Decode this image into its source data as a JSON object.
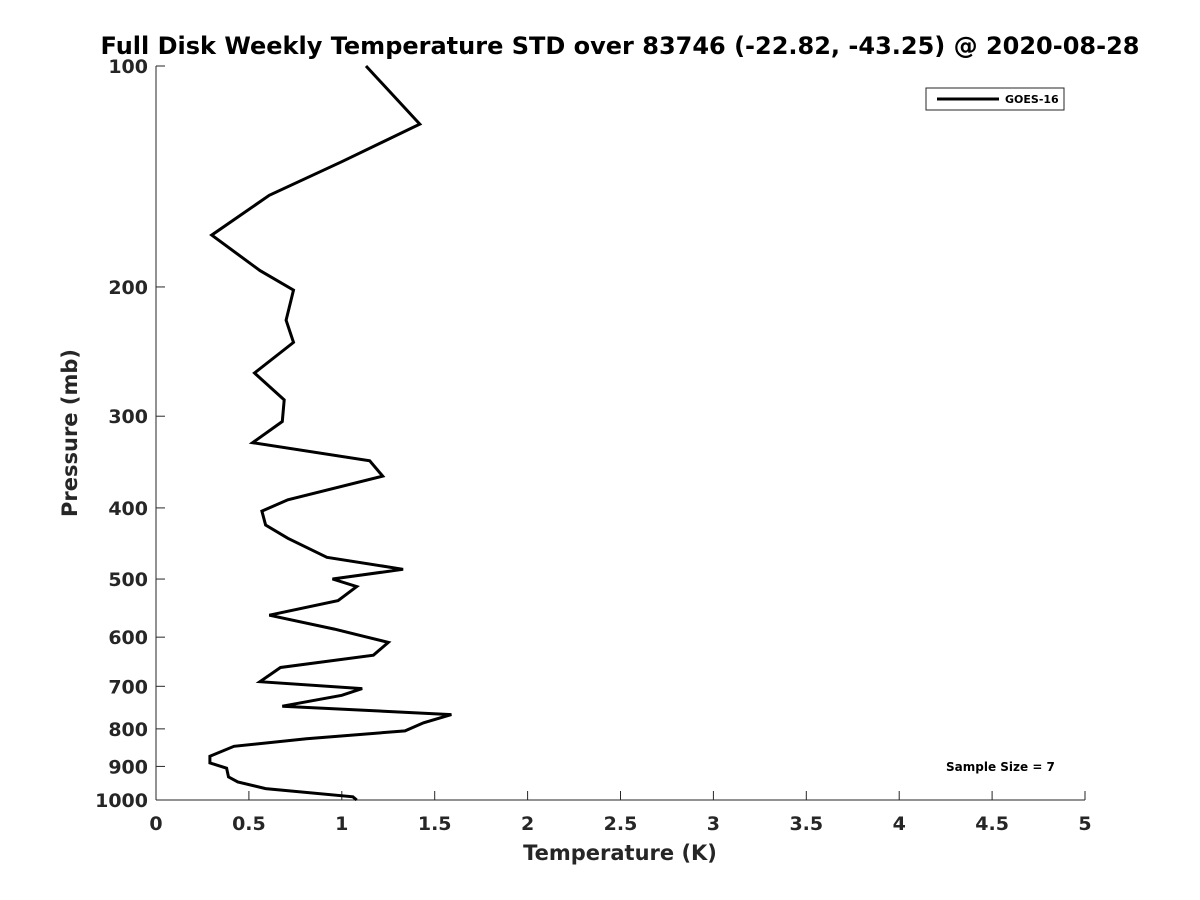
{
  "chart_data": {
    "type": "line",
    "title": "Full Disk Weekly Temperature STD over 83746 (-22.82, -43.25) @ 2020-08-28",
    "xlabel": "Temperature (K)",
    "ylabel": "Pressure (mb)",
    "xlim": [
      0,
      5
    ],
    "ylim": [
      100,
      1000
    ],
    "y_scale": "log",
    "y_reversed": true,
    "grid": false,
    "x_ticks": [
      0,
      0.5,
      1,
      1.5,
      2,
      2.5,
      3,
      3.5,
      4,
      4.5,
      5
    ],
    "x_tick_labels": [
      "0",
      "0.5",
      "1",
      "1.5",
      "2",
      "2.5",
      "3",
      "3.5",
      "4",
      "4.5",
      "5"
    ],
    "y_ticks": [
      100,
      200,
      300,
      400,
      500,
      600,
      700,
      800,
      900,
      1000
    ],
    "y_tick_labels": [
      "100",
      "200",
      "300",
      "400",
      "500",
      "600",
      "700",
      "800",
      "900",
      "1000"
    ],
    "legend": {
      "placement": "top-right",
      "entries": [
        "GOES-16"
      ]
    },
    "annotation": "Sample Size = 7",
    "series": [
      {
        "name": "GOES-16",
        "color": "#000000",
        "x": [
          1.13,
          1.42,
          1.0,
          0.61,
          0.3,
          0.56,
          0.74,
          0.7,
          0.74,
          0.53,
          0.69,
          0.68,
          0.52,
          1.15,
          1.22,
          0.71,
          0.57,
          0.59,
          0.71,
          0.92,
          1.33,
          0.95,
          1.08,
          0.98,
          0.61,
          0.96,
          1.25,
          1.17,
          0.67,
          0.56,
          1.11,
          1.0,
          0.68,
          1.59,
          1.44,
          1.34,
          0.81,
          0.42,
          0.29,
          0.29,
          0.38,
          0.39,
          0.44,
          0.59,
          1.06,
          1.08
        ],
        "y": [
          100,
          120,
          135,
          150,
          170,
          190,
          202,
          222,
          238,
          262,
          285,
          305,
          326,
          345,
          362,
          390,
          404,
          422,
          440,
          467,
          485,
          500,
          512,
          535,
          560,
          585,
          610,
          635,
          660,
          690,
          705,
          720,
          745,
          765,
          785,
          805,
          825,
          845,
          872,
          890,
          905,
          930,
          945,
          965,
          990,
          1000
        ]
      }
    ]
  }
}
